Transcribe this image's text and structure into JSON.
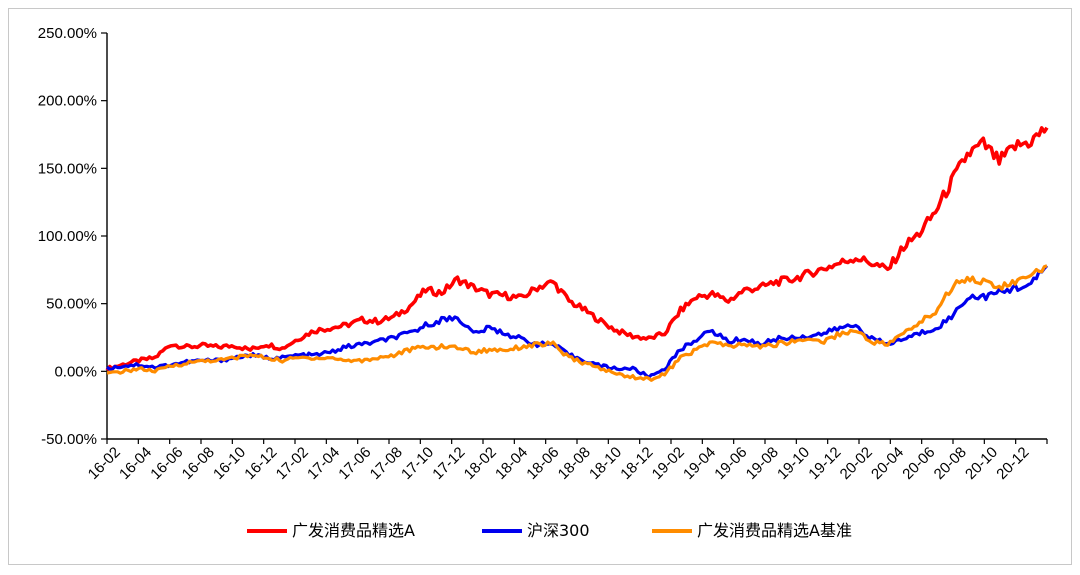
{
  "chart_data": {
    "type": "line",
    "title": "",
    "xlabel": "",
    "ylabel": "",
    "ylim": [
      -50,
      250
    ],
    "y_ticks": [
      -50,
      0,
      50,
      100,
      150,
      200,
      250
    ],
    "y_tick_labels": [
      "-50.00%",
      "0.00%",
      "50.00%",
      "100.00%",
      "150.00%",
      "200.00%",
      "250.00%"
    ],
    "x_tick_labels": [
      "16-02",
      "16-04",
      "16-06",
      "16-08",
      "16-10",
      "16-12",
      "17-02",
      "17-04",
      "17-06",
      "17-08",
      "17-10",
      "17-12",
      "18-02",
      "18-04",
      "18-06",
      "18-08",
      "18-10",
      "18-12",
      "19-02",
      "19-04",
      "19-06",
      "19-08",
      "19-10",
      "19-12",
      "20-02",
      "20-04",
      "20-06",
      "20-08",
      "20-10",
      "20-12"
    ],
    "legend_position": "bottom",
    "grid": false,
    "x": [
      "16-02",
      "16-03",
      "16-04",
      "16-05",
      "16-06",
      "16-07",
      "16-08",
      "16-09",
      "16-10",
      "16-11",
      "16-12",
      "17-01",
      "17-02",
      "17-03",
      "17-04",
      "17-05",
      "17-06",
      "17-07",
      "17-08",
      "17-09",
      "17-10",
      "17-11",
      "17-12",
      "18-01",
      "18-02",
      "18-03",
      "18-04",
      "18-05",
      "18-06",
      "18-07",
      "18-08",
      "18-09",
      "18-10",
      "18-11",
      "18-12",
      "19-01",
      "19-02",
      "19-03",
      "19-04",
      "19-05",
      "19-06",
      "19-07",
      "19-08",
      "19-09",
      "19-10",
      "19-11",
      "19-12",
      "20-01",
      "20-02",
      "20-03",
      "20-04",
      "20-05",
      "20-06",
      "20-07",
      "20-08",
      "20-09",
      "20-10",
      "20-11",
      "20-12",
      "21-01"
    ],
    "series": [
      {
        "name": "广发消费品精选A",
        "color": "#ff0000",
        "values": [
          2,
          5,
          8,
          10,
          20,
          18,
          19,
          18,
          19,
          16,
          20,
          17,
          24,
          30,
          32,
          34,
          38,
          37,
          40,
          48,
          60,
          58,
          68,
          62,
          57,
          56,
          54,
          62,
          66,
          52,
          45,
          37,
          30,
          26,
          24,
          28,
          45,
          55,
          57,
          52,
          60,
          62,
          66,
          68,
          72,
          76,
          80,
          84,
          80,
          75,
          92,
          102,
          118,
          140,
          160,
          168,
          155,
          166,
          170,
          180
        ]
      },
      {
        "name": "沪深300",
        "color": "#0000ee",
        "values": [
          2,
          4,
          5,
          3,
          5,
          7,
          8,
          8,
          10,
          12,
          10,
          10,
          12,
          12,
          14,
          18,
          20,
          22,
          25,
          28,
          34,
          38,
          40,
          28,
          32,
          28,
          24,
          20,
          20,
          12,
          8,
          4,
          2,
          2,
          -4,
          2,
          16,
          24,
          30,
          22,
          24,
          20,
          24,
          25,
          26,
          28,
          32,
          34,
          24,
          20,
          24,
          28,
          32,
          40,
          55,
          55,
          58,
          62,
          64,
          78
        ]
      },
      {
        "name": "广发消费品精选A基准",
        "color": "#ff8c00",
        "values": [
          -2,
          0,
          2,
          0,
          4,
          6,
          8,
          8,
          10,
          12,
          10,
          8,
          10,
          10,
          10,
          8,
          8,
          10,
          12,
          16,
          18,
          18,
          18,
          14,
          16,
          16,
          18,
          20,
          20,
          10,
          6,
          2,
          -2,
          -4,
          -6,
          -2,
          10,
          16,
          22,
          18,
          20,
          18,
          20,
          22,
          24,
          22,
          28,
          30,
          22,
          20,
          28,
          36,
          44,
          62,
          70,
          66,
          62,
          66,
          70,
          78
        ]
      }
    ]
  }
}
